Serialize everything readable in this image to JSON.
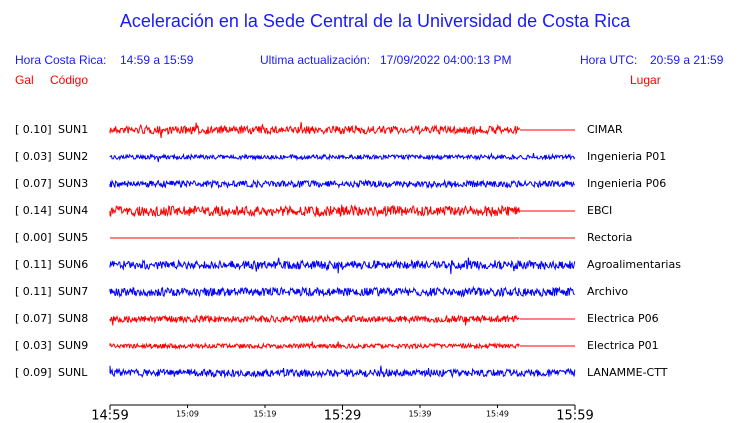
{
  "header": {
    "title": "Aceleración en la Sede Central de la Universidad de Costa Rica",
    "hora_cr_label": "Hora Costa Rica:",
    "hora_cr": "14:59 a 15:59",
    "ultima_label": "Ultima actualización:",
    "ultima": "17/09/2022 04:00:13 PM",
    "utc_label": "Hora UTC:",
    "utc": "20:59 a 21:59",
    "gal_label": "Gal",
    "codigo_label": "Código",
    "lugar_label": "Lugar"
  },
  "stations": [
    {
      "gal": "[  0.10]",
      "code": "SUN1",
      "place": "CIMAR",
      "color": "#ff0000"
    },
    {
      "gal": "[  0.03]",
      "code": "SUN2",
      "place": "Ingenieria P01",
      "color": "#0000ff"
    },
    {
      "gal": "[  0.07]",
      "code": "SUN3",
      "place": "Ingenieria P06",
      "color": "#0000ff"
    },
    {
      "gal": "[  0.14]",
      "code": "SUN4",
      "place": "EBCI",
      "color": "#ff0000"
    },
    {
      "gal": "[  0.00]",
      "code": "SUN5",
      "place": "Rectoria",
      "color": "#ff0000"
    },
    {
      "gal": "[  0.11]",
      "code": "SUN6",
      "place": "Agroalimentarias",
      "color": "#0000ff"
    },
    {
      "gal": "[  0.11]",
      "code": "SUN7",
      "place": "Archivo",
      "color": "#0000ff"
    },
    {
      "gal": "[  0.07]",
      "code": "SUN8",
      "place": "Electrica P06",
      "color": "#ff0000"
    },
    {
      "gal": "[  0.03]",
      "code": "SUN9",
      "place": "Electrica P01",
      "color": "#ff0000"
    },
    {
      "gal": "[  0.09]",
      "code": "SUNL",
      "place": "LANAMME-CTT",
      "color": "#0000ff"
    }
  ],
  "time_axis": [
    {
      "label": "14:59",
      "major": true
    },
    {
      "label": "15:09",
      "major": false
    },
    {
      "label": "15:19",
      "major": false
    },
    {
      "label": "15:29",
      "major": true
    },
    {
      "label": "15:39",
      "major": false
    },
    {
      "label": "15:49",
      "major": false
    },
    {
      "label": "15:59",
      "major": true
    }
  ]
}
